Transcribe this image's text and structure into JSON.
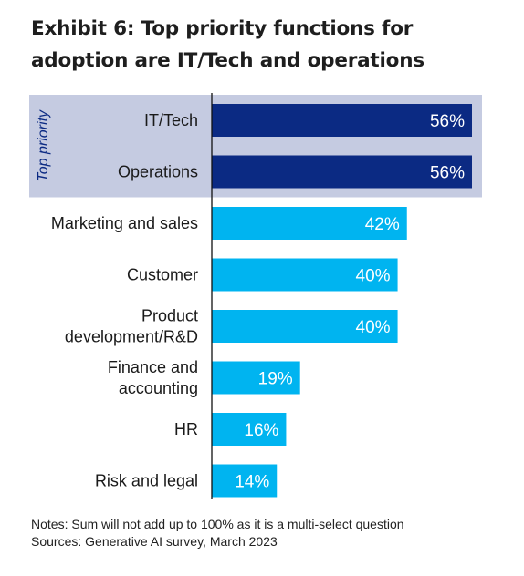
{
  "title_line1": "Exhibit 6: Top priority functions for",
  "title_line2": "adoption are IT/Tech and operations",
  "group_label": "Top priority",
  "notes": "Notes: Sum will not add up to 100% as it is a multi-select question",
  "sources": "Sources: Generative AI survey, March 2023",
  "colors": {
    "top_priority": "#0b2a83",
    "other": "#00b4f0",
    "highlight_band": "#c5cbe1",
    "axis": "#111111"
  },
  "chart_data": {
    "type": "bar",
    "orientation": "horizontal",
    "categories": [
      "IT/Tech",
      "Operations",
      "Marketing and sales",
      "Customer",
      "Product development/R&D",
      "Finance and accounting",
      "HR",
      "Risk and legal"
    ],
    "values": [
      56,
      56,
      42,
      40,
      40,
      19,
      16,
      14
    ],
    "labels": [
      "56%",
      "56%",
      "42%",
      "40%",
      "40%",
      "19%",
      "16%",
      "14%"
    ],
    "category_lines": [
      [
        "IT/Tech"
      ],
      [
        "Operations"
      ],
      [
        "Marketing and sales"
      ],
      [
        "Customer"
      ],
      [
        "Product",
        "development/R&D"
      ],
      [
        "Finance and",
        "accounting"
      ],
      [
        "HR"
      ],
      [
        "Risk and legal"
      ]
    ],
    "top_priority": [
      true,
      true,
      false,
      false,
      false,
      false,
      false,
      false
    ],
    "xlim": [
      0,
      60
    ]
  }
}
